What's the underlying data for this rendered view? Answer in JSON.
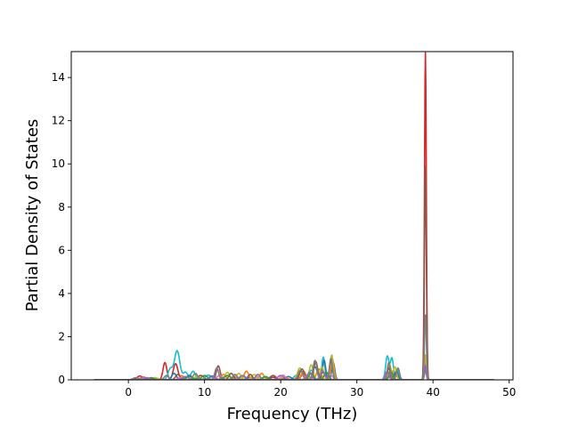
{
  "chart_data": {
    "type": "line",
    "title": "",
    "xlabel": "Frequency (THz)",
    "ylabel": "Partial Density of States",
    "xlim": [
      -7.5,
      50.5
    ],
    "ylim": [
      0,
      15.2
    ],
    "xticks": [
      0,
      10,
      20,
      30,
      40,
      50
    ],
    "yticks": [
      0,
      2,
      4,
      6,
      8,
      10,
      12,
      14
    ],
    "grid": false,
    "legend": "none",
    "x_range": [
      -4.5,
      48
    ],
    "series": [
      {
        "color": "#d62728",
        "peaks": [
          [
            1.5,
            0.18,
            0.35
          ],
          [
            4.8,
            0.8,
            0.25
          ],
          [
            6.2,
            0.75,
            0.3
          ],
          [
            9.5,
            0.2,
            0.4
          ],
          [
            14,
            0.15,
            0.4
          ],
          [
            19,
            0.12,
            0.4
          ],
          [
            23,
            0.3,
            0.3
          ],
          [
            25.5,
            0.35,
            0.3
          ],
          [
            26.7,
            0.5,
            0.25
          ],
          [
            34,
            0.4,
            0.25
          ],
          [
            35,
            0.3,
            0.25
          ],
          [
            39,
            15.15,
            0.12
          ]
        ]
      },
      {
        "color": "#17becf",
        "peaks": [
          [
            2,
            0.12,
            0.4
          ],
          [
            5.5,
            0.5,
            0.3
          ],
          [
            6.4,
            1.35,
            0.35
          ],
          [
            7.5,
            0.35,
            0.3
          ],
          [
            8.5,
            0.4,
            0.3
          ],
          [
            10.5,
            0.22,
            0.4
          ],
          [
            12,
            0.2,
            0.4
          ],
          [
            15,
            0.15,
            0.4
          ],
          [
            18,
            0.12,
            0.4
          ],
          [
            22,
            0.2,
            0.3
          ],
          [
            24,
            0.45,
            0.3
          ],
          [
            25.6,
            1.05,
            0.2
          ],
          [
            26.8,
            0.7,
            0.2
          ],
          [
            34,
            1.1,
            0.22
          ],
          [
            34.6,
            1.0,
            0.2
          ],
          [
            35.3,
            0.5,
            0.2
          ],
          [
            39,
            0.55,
            0.12
          ]
        ]
      },
      {
        "color": "#1f77b4",
        "peaks": [
          [
            3,
            0.1,
            0.4
          ],
          [
            6,
            0.3,
            0.3
          ],
          [
            8,
            0.2,
            0.4
          ],
          [
            11,
            0.18,
            0.4
          ],
          [
            16,
            0.12,
            0.4
          ],
          [
            21,
            0.15,
            0.4
          ],
          [
            24.5,
            0.6,
            0.3
          ],
          [
            25.7,
            0.9,
            0.2
          ],
          [
            26.9,
            0.8,
            0.2
          ],
          [
            34.2,
            0.6,
            0.2
          ],
          [
            35.2,
            0.4,
            0.2
          ],
          [
            39,
            0.85,
            0.13
          ]
        ]
      },
      {
        "color": "#ff7f0e",
        "peaks": [
          [
            2.5,
            0.1,
            0.4
          ],
          [
            7,
            0.2,
            0.3
          ],
          [
            12.5,
            0.25,
            0.3
          ],
          [
            15.5,
            0.4,
            0.3
          ],
          [
            17.5,
            0.3,
            0.3
          ],
          [
            20.5,
            0.12,
            0.4
          ],
          [
            23,
            0.4,
            0.3
          ],
          [
            25,
            0.5,
            0.3
          ],
          [
            26.8,
            0.95,
            0.2
          ],
          [
            34.5,
            0.45,
            0.25
          ],
          [
            39,
            1.0,
            0.13
          ]
        ]
      },
      {
        "color": "#bcbd22",
        "peaks": [
          [
            3.5,
            0.1,
            0.4
          ],
          [
            9,
            0.15,
            0.4
          ],
          [
            13,
            0.35,
            0.3
          ],
          [
            14.5,
            0.3,
            0.3
          ],
          [
            16.5,
            0.25,
            0.3
          ],
          [
            22.5,
            0.55,
            0.3
          ],
          [
            24,
            0.7,
            0.25
          ],
          [
            25.4,
            0.6,
            0.25
          ],
          [
            26.7,
            1.15,
            0.2
          ],
          [
            34.3,
            0.7,
            0.2
          ],
          [
            35,
            0.6,
            0.2
          ],
          [
            39,
            1.15,
            0.13
          ]
        ]
      },
      {
        "color": "#8c564b",
        "peaks": [
          [
            2,
            0.12,
            0.4
          ],
          [
            6.5,
            0.25,
            0.3
          ],
          [
            11.8,
            0.65,
            0.25
          ],
          [
            13.5,
            0.3,
            0.3
          ],
          [
            16,
            0.25,
            0.3
          ],
          [
            19,
            0.2,
            0.4
          ],
          [
            22.8,
            0.5,
            0.3
          ],
          [
            24.6,
            0.85,
            0.25
          ],
          [
            26.6,
            0.9,
            0.2
          ],
          [
            34.2,
            0.55,
            0.2
          ],
          [
            39,
            9.9,
            0.12
          ]
        ]
      },
      {
        "color": "#e377c2",
        "peaks": [
          [
            2,
            0.08,
            0.4
          ],
          [
            7,
            0.12,
            0.4
          ],
          [
            12,
            0.2,
            0.4
          ],
          [
            17,
            0.15,
            0.4
          ],
          [
            20.3,
            0.22,
            0.3
          ],
          [
            23.5,
            0.2,
            0.3
          ],
          [
            26.5,
            0.25,
            0.3
          ],
          [
            34,
            0.2,
            0.25
          ],
          [
            39,
            0.4,
            0.13
          ]
        ]
      },
      {
        "color": "#2ca02c",
        "peaks": [
          [
            3,
            0.08,
            0.4
          ],
          [
            8,
            0.15,
            0.4
          ],
          [
            10,
            0.2,
            0.4
          ],
          [
            13,
            0.2,
            0.4
          ],
          [
            18,
            0.15,
            0.4
          ],
          [
            24,
            0.3,
            0.3
          ],
          [
            26,
            0.35,
            0.3
          ],
          [
            34.5,
            0.35,
            0.25
          ],
          [
            39,
            0.5,
            0.13
          ]
        ]
      },
      {
        "color": "#9467bd",
        "peaks": [
          [
            2.5,
            0.08,
            0.4
          ],
          [
            7.5,
            0.15,
            0.4
          ],
          [
            11,
            0.15,
            0.4
          ],
          [
            15,
            0.2,
            0.4
          ],
          [
            20,
            0.2,
            0.4
          ],
          [
            23.8,
            0.35,
            0.3
          ],
          [
            25.5,
            0.4,
            0.3
          ],
          [
            34,
            0.4,
            0.25
          ],
          [
            39,
            0.65,
            0.13
          ]
        ]
      },
      {
        "color": "#7f7f7f",
        "peaks": [
          [
            1,
            0.1,
            0.4
          ],
          [
            5,
            0.2,
            0.3
          ],
          [
            8.8,
            0.3,
            0.3
          ],
          [
            11.6,
            0.55,
            0.25
          ],
          [
            14,
            0.25,
            0.3
          ],
          [
            17,
            0.25,
            0.3
          ],
          [
            22.6,
            0.45,
            0.3
          ],
          [
            24.5,
            0.9,
            0.25
          ],
          [
            26.6,
            1.0,
            0.2
          ],
          [
            34.2,
            0.8,
            0.2
          ],
          [
            35.4,
            0.55,
            0.2
          ],
          [
            39,
            3.0,
            0.12
          ]
        ]
      }
    ]
  }
}
